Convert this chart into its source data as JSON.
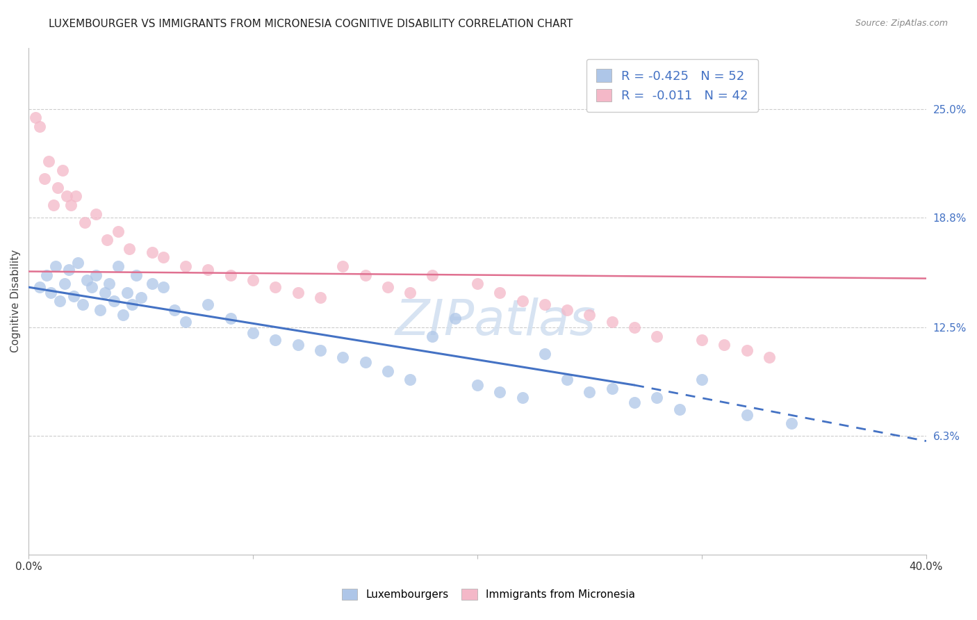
{
  "title": "LUXEMBOURGER VS IMMIGRANTS FROM MICRONESIA COGNITIVE DISABILITY CORRELATION CHART",
  "source_text": "Source: ZipAtlas.com",
  "ylabel": "Cognitive Disability",
  "y_tick_labels": [
    "6.3%",
    "12.5%",
    "18.8%",
    "25.0%"
  ],
  "y_tick_values": [
    0.063,
    0.125,
    0.188,
    0.25
  ],
  "xlim": [
    0.0,
    0.4
  ],
  "ylim": [
    -0.005,
    0.285
  ],
  "legend_entries": [
    {
      "label": "R = -0.425   N = 52",
      "color": "#aec6e8"
    },
    {
      "label": "R =  -0.011   N = 42",
      "color": "#f4a7b9"
    }
  ],
  "blue_scatter_x": [
    0.005,
    0.008,
    0.01,
    0.012,
    0.014,
    0.016,
    0.018,
    0.02,
    0.022,
    0.024,
    0.026,
    0.028,
    0.03,
    0.032,
    0.034,
    0.036,
    0.038,
    0.04,
    0.042,
    0.044,
    0.046,
    0.048,
    0.05,
    0.055,
    0.06,
    0.065,
    0.07,
    0.08,
    0.09,
    0.1,
    0.11,
    0.12,
    0.13,
    0.14,
    0.15,
    0.16,
    0.17,
    0.18,
    0.19,
    0.2,
    0.21,
    0.22,
    0.23,
    0.24,
    0.25,
    0.26,
    0.27,
    0.28,
    0.29,
    0.3,
    0.32,
    0.34
  ],
  "blue_scatter_y": [
    0.148,
    0.155,
    0.145,
    0.16,
    0.14,
    0.15,
    0.158,
    0.143,
    0.162,
    0.138,
    0.152,
    0.148,
    0.155,
    0.135,
    0.145,
    0.15,
    0.14,
    0.16,
    0.132,
    0.145,
    0.138,
    0.155,
    0.142,
    0.15,
    0.148,
    0.135,
    0.128,
    0.138,
    0.13,
    0.122,
    0.118,
    0.115,
    0.112,
    0.108,
    0.105,
    0.1,
    0.095,
    0.12,
    0.13,
    0.092,
    0.088,
    0.085,
    0.11,
    0.095,
    0.088,
    0.09,
    0.082,
    0.085,
    0.078,
    0.095,
    0.075,
    0.07
  ],
  "pink_scatter_x": [
    0.003,
    0.005,
    0.007,
    0.009,
    0.011,
    0.013,
    0.015,
    0.017,
    0.019,
    0.021,
    0.025,
    0.03,
    0.035,
    0.04,
    0.045,
    0.055,
    0.06,
    0.07,
    0.08,
    0.09,
    0.1,
    0.11,
    0.12,
    0.13,
    0.14,
    0.15,
    0.16,
    0.17,
    0.18,
    0.2,
    0.21,
    0.22,
    0.23,
    0.24,
    0.25,
    0.26,
    0.27,
    0.28,
    0.3,
    0.31,
    0.32,
    0.33
  ],
  "pink_scatter_y": [
    0.245,
    0.24,
    0.21,
    0.22,
    0.195,
    0.205,
    0.215,
    0.2,
    0.195,
    0.2,
    0.185,
    0.19,
    0.175,
    0.18,
    0.17,
    0.168,
    0.165,
    0.16,
    0.158,
    0.155,
    0.152,
    0.148,
    0.145,
    0.142,
    0.16,
    0.155,
    0.148,
    0.145,
    0.155,
    0.15,
    0.145,
    0.14,
    0.138,
    0.135,
    0.132,
    0.128,
    0.125,
    0.12,
    0.118,
    0.115,
    0.112,
    0.108
  ],
  "blue_line_x_start": 0.0,
  "blue_line_x_solid_end": 0.27,
  "blue_line_x_end": 0.4,
  "blue_line_y_start": 0.148,
  "blue_line_y_solid_end": 0.092,
  "blue_line_y_end": 0.06,
  "pink_line_x_start": 0.0,
  "pink_line_x_end": 0.4,
  "pink_line_y_start": 0.157,
  "pink_line_y_end": 0.153,
  "background_color": "#ffffff",
  "grid_color": "#cccccc",
  "scatter_blue": "#aec6e8",
  "scatter_pink": "#f4b8c8",
  "line_blue": "#4472c4",
  "line_pink": "#e07090",
  "title_fontsize": 11,
  "source_fontsize": 9,
  "tick_label_color_right": "#4472c4",
  "legend_r_color": "#4472c4",
  "watermark_text": "ZIPatlas"
}
